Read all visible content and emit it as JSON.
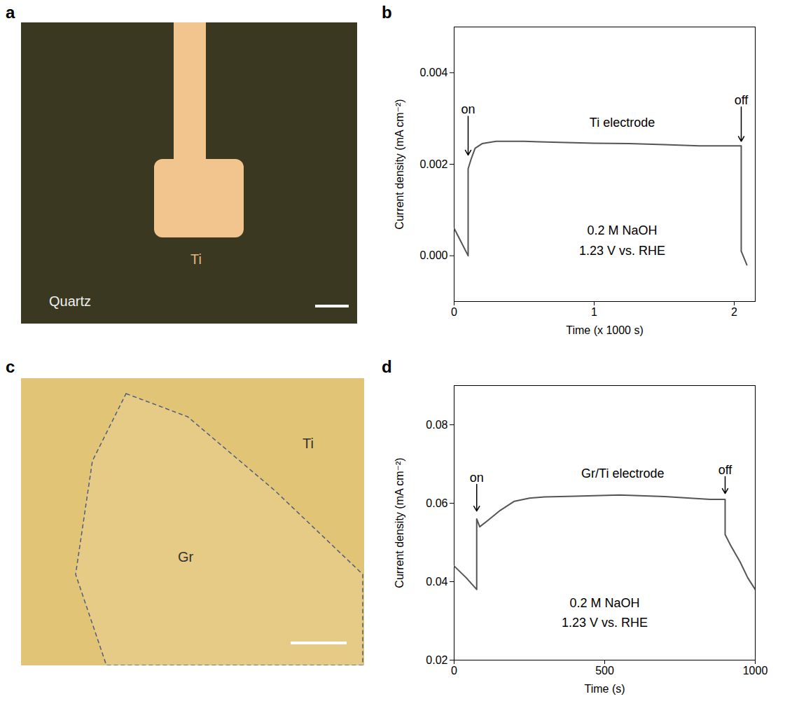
{
  "images": [
    {
      "panel": "a",
      "electrode": "Ti",
      "substrate": "Quartz"
    },
    {
      "panel": "c",
      "flake": "Gr",
      "substrate": "Ti"
    }
  ],
  "chart_data": [
    {
      "panel": "b",
      "type": "line",
      "color": "#555555",
      "grid": false,
      "xlabel": "Time (x 1000 s)",
      "ylabel": "Current density (mA cm⁻²)",
      "xlim": [
        0,
        2.15
      ],
      "xticks": [
        0,
        1,
        2
      ],
      "ylim": [
        -0.001,
        0.005
      ],
      "yticks": [
        {
          "value": 0,
          "label": "0.000"
        },
        0.002,
        0.004
      ],
      "x": [
        0,
        0.05,
        0.1,
        0.1,
        0.12,
        0.15,
        0.2,
        0.3,
        0.5,
        0.75,
        1.0,
        1.25,
        1.5,
        1.75,
        2.0,
        2.05,
        2.05,
        2.09
      ],
      "values": [
        0.0006,
        0.0003,
        0.0,
        0.0019,
        0.0021,
        0.00235,
        0.00245,
        0.0025,
        0.0025,
        0.00248,
        0.00246,
        0.00245,
        0.00243,
        0.0024,
        0.0024,
        0.0024,
        0.0001,
        -0.0002
      ],
      "annotations": [
        {
          "text": "on",
          "x": 0.1,
          "y": 0.0032,
          "arrow_from": 0.00305,
          "arrow_to": 0.0022
        },
        {
          "text": "off",
          "x": 2.05,
          "y": 0.0034,
          "arrow_from": 0.00325,
          "arrow_to": 0.0025
        },
        {
          "text": "Ti electrode",
          "x": 1.2,
          "y": 0.0029
        },
        {
          "text": "0.2 M NaOH",
          "x": 1.2,
          "y": 0.00055
        },
        {
          "text": "1.23 V vs. RHE",
          "x": 1.2,
          "y": 0.0001
        }
      ]
    },
    {
      "panel": "d",
      "type": "line",
      "color": "#555555",
      "grid": false,
      "xlabel": "Time (s)",
      "ylabel": "Current density (mA cm⁻²)",
      "xlim": [
        0,
        1000
      ],
      "xticks": [
        0,
        500,
        1000
      ],
      "ylim": [
        0.02,
        0.09
      ],
      "yticks": [
        0.02,
        0.04,
        0.06,
        0.08
      ],
      "x": [
        0,
        40,
        75,
        75,
        85,
        110,
        150,
        200,
        250,
        300,
        400,
        550,
        700,
        850,
        900,
        900,
        920,
        950,
        975,
        1000
      ],
      "values": [
        0.044,
        0.041,
        0.038,
        0.056,
        0.054,
        0.0555,
        0.058,
        0.0605,
        0.0613,
        0.0616,
        0.0618,
        0.0621,
        0.0617,
        0.061,
        0.061,
        0.052,
        0.049,
        0.045,
        0.041,
        0.038
      ],
      "annotations": [
        {
          "text": "on",
          "x": 75,
          "y": 0.0665,
          "arrow_from": 0.0648,
          "arrow_to": 0.058
        },
        {
          "text": "off",
          "x": 900,
          "y": 0.0685,
          "arrow_from": 0.0668,
          "arrow_to": 0.0625
        },
        {
          "text": "Gr/Ti electrode",
          "x": 560,
          "y": 0.0675
        },
        {
          "text": "0.2 M NaOH",
          "x": 500,
          "y": 0.0345
        },
        {
          "text": "1.23 V vs. RHE",
          "x": 500,
          "y": 0.0295
        }
      ]
    }
  ]
}
